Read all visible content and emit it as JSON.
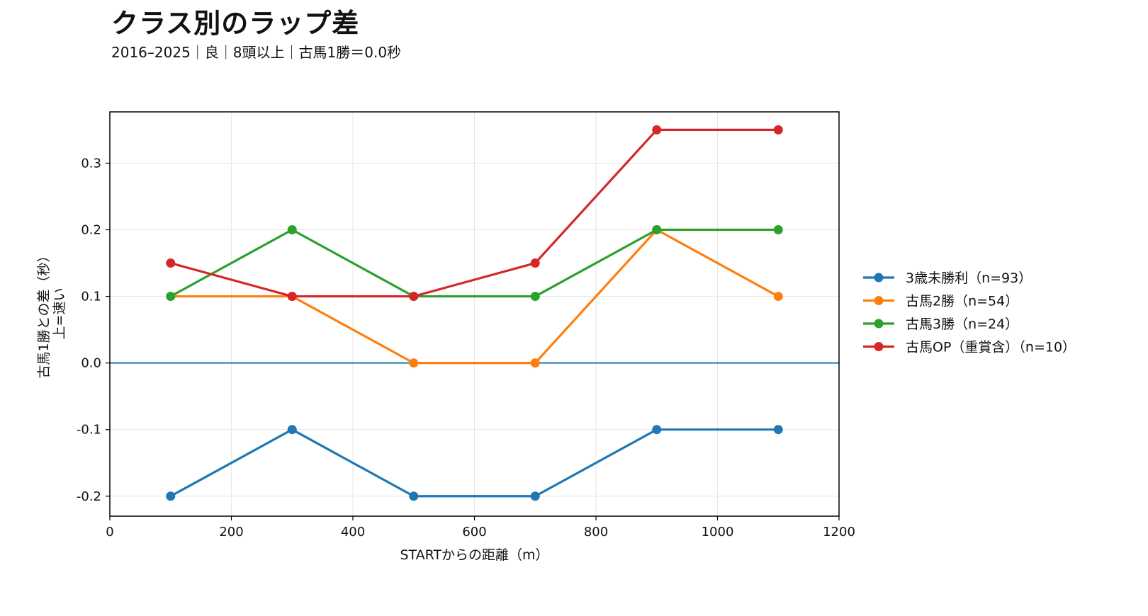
{
  "header": {
    "title": "クラス別のラップ差",
    "subtitle": "2016–2025｜良｜8頭以上｜古馬1勝＝0.0秒"
  },
  "chart_data": {
    "type": "line",
    "title": "クラス別のラップ差",
    "subtitle": "2016–2025｜良｜8頭以上｜古馬1勝＝0.0秒",
    "xlabel": "STARTからの距離（m）",
    "ylabel_line1": "古馬1勝との差（秒）",
    "ylabel_line2": "上=速い",
    "xlim": [
      0,
      1200
    ],
    "ylim": [
      -0.23,
      0.377
    ],
    "xticks": [
      0,
      200,
      400,
      600,
      800,
      1000,
      1200
    ],
    "yticks": [
      -0.2,
      -0.1,
      0.0,
      0.1,
      0.2,
      0.3
    ],
    "grid": true,
    "legend_position": "right",
    "baseline": {
      "y": 0.0,
      "color": "#1f77b4"
    },
    "x": [
      100,
      300,
      500,
      700,
      900,
      1100
    ],
    "series": [
      {
        "name": "3歳未勝利（n=93）",
        "color": "#1f77b4",
        "values": [
          -0.2,
          -0.1,
          -0.2,
          -0.2,
          -0.1,
          -0.1
        ]
      },
      {
        "name": "古馬2勝（n=54）",
        "color": "#ff7f0e",
        "values": [
          0.1,
          0.1,
          0.0,
          0.0,
          0.2,
          0.1
        ]
      },
      {
        "name": "古馬3勝（n=24）",
        "color": "#2ca02c",
        "values": [
          0.1,
          0.2,
          0.1,
          0.1,
          0.2,
          0.2
        ]
      },
      {
        "name": "古馬OP（重賞含）（n=10）",
        "color": "#d62728",
        "values": [
          0.15,
          0.1,
          0.1,
          0.15,
          0.35,
          0.35
        ]
      }
    ]
  }
}
